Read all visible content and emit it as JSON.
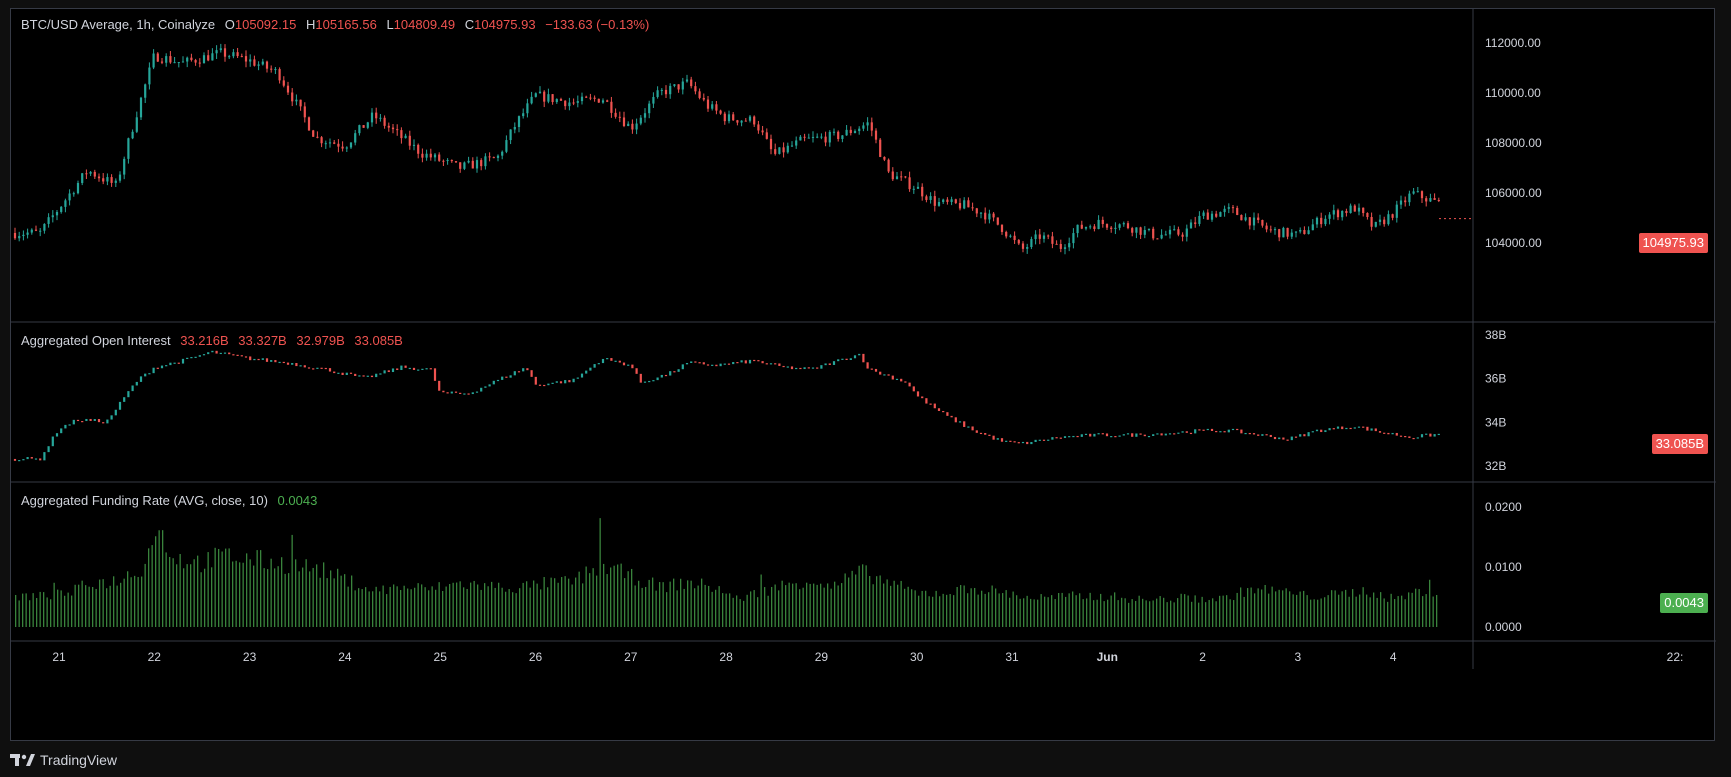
{
  "main_legend": {
    "symbol": "BTC/USD Average, 1h, Coinalyze",
    "o_label": "O",
    "o": "105092.15",
    "h_label": "H",
    "h": "105165.56",
    "l_label": "L",
    "l": "104809.49",
    "c_label": "C",
    "c": "104975.93",
    "change": "−133.63 (−0.13%)"
  },
  "oi_legend": {
    "title": "Aggregated Open Interest",
    "v1": "33.216B",
    "v2": "33.327B",
    "v3": "32.979B",
    "v4": "33.085B"
  },
  "fr_legend": {
    "title": "Aggregated Funding Rate (AVG, close, 10)",
    "value": "0.0043"
  },
  "price_label": "104975.93",
  "oi_label": "33.085B",
  "fr_label": "0.0043",
  "footer": {
    "brand": "TradingView"
  },
  "colors": {
    "up": "#26a69a",
    "down": "#ef5350",
    "funding": "#4caf50",
    "grid": "#363a45",
    "text": "#d1d4dc"
  },
  "chart_data": [
    {
      "type": "candlestick",
      "title": "BTC/USD Average, 1h, Coinalyze",
      "x_ticks": [
        "21",
        "22",
        "23",
        "24",
        "25",
        "26",
        "27",
        "28",
        "29",
        "30",
        "31",
        "Jun",
        "2",
        "3",
        "4",
        "22:"
      ],
      "y_ticks": [
        "104000.00",
        "106000.00",
        "108000.00",
        "110000.00",
        "112000.00"
      ],
      "ylim": [
        102400,
        113400
      ],
      "close_path": [
        [
          20.8,
          104400
        ],
        [
          21.3,
          106900
        ],
        [
          21.6,
          106300
        ],
        [
          21.8,
          109000
        ],
        [
          22.0,
          111500
        ],
        [
          22.3,
          111200
        ],
        [
          22.7,
          111600
        ],
        [
          23.0,
          111300
        ],
        [
          23.3,
          110800
        ],
        [
          23.5,
          109500
        ],
        [
          23.7,
          108200
        ],
        [
          24.0,
          107900
        ],
        [
          24.3,
          109100
        ],
        [
          24.5,
          108500
        ],
        [
          24.8,
          107600
        ],
        [
          25.2,
          107000
        ],
        [
          25.6,
          107400
        ],
        [
          25.8,
          108800
        ],
        [
          26.0,
          109900
        ],
        [
          26.4,
          109600
        ],
        [
          26.7,
          109800
        ],
        [
          27.0,
          108600
        ],
        [
          27.3,
          110000
        ],
        [
          27.6,
          110400
        ],
        [
          27.8,
          109500
        ],
        [
          28.0,
          109000
        ],
        [
          28.3,
          108900
        ],
        [
          28.5,
          107500
        ],
        [
          28.8,
          108100
        ],
        [
          29.2,
          108300
        ],
        [
          29.5,
          108800
        ],
        [
          29.7,
          106800
        ],
        [
          30.0,
          106200
        ],
        [
          30.2,
          105600
        ],
        [
          30.5,
          105500
        ],
        [
          30.7,
          105200
        ],
        [
          30.9,
          104600
        ],
        [
          31.1,
          103700
        ],
        [
          31.3,
          104300
        ],
        [
          31.5,
          103800
        ],
        [
          31.7,
          104600
        ],
        [
          31.9,
          104800
        ],
        [
          32.2,
          104700
        ],
        [
          32.5,
          104300
        ],
        [
          32.8,
          104400
        ],
        [
          33.0,
          105100
        ],
        [
          33.3,
          105300
        ],
        [
          33.5,
          104900
        ],
        [
          33.7,
          104500
        ],
        [
          34.0,
          104300
        ],
        [
          34.3,
          105100
        ],
        [
          34.6,
          105400
        ],
        [
          34.8,
          104600
        ],
        [
          35.0,
          105200
        ],
        [
          35.2,
          106000
        ],
        [
          35.6,
          105400
        ],
        [
          35.8,
          105400
        ],
        [
          36.0,
          105600
        ],
        [
          36.2,
          104970
        ]
      ]
    },
    {
      "type": "line",
      "title": "Aggregated Open Interest",
      "y_ticks": [
        "32B",
        "34B",
        "36B",
        "38B"
      ],
      "ylim": [
        31.7,
        38.5
      ],
      "path": [
        [
          20.8,
          32.3
        ],
        [
          21.0,
          33.7
        ],
        [
          21.2,
          34.1
        ],
        [
          21.5,
          34.0
        ],
        [
          21.8,
          35.8
        ],
        [
          22.0,
          36.5
        ],
        [
          22.3,
          36.8
        ],
        [
          22.6,
          37.2
        ],
        [
          23.0,
          36.9
        ],
        [
          23.4,
          36.7
        ],
        [
          23.8,
          36.4
        ],
        [
          24.2,
          36.0
        ],
        [
          24.6,
          36.5
        ],
        [
          24.9,
          36.4
        ],
        [
          25.0,
          35.3
        ],
        [
          25.3,
          35.3
        ],
        [
          25.6,
          35.9
        ],
        [
          25.9,
          36.5
        ],
        [
          26.0,
          35.7
        ],
        [
          26.4,
          35.9
        ],
        [
          26.7,
          36.9
        ],
        [
          27.0,
          36.6
        ],
        [
          27.1,
          35.8
        ],
        [
          27.4,
          36.2
        ],
        [
          27.6,
          36.7
        ],
        [
          27.9,
          36.6
        ],
        [
          28.3,
          36.8
        ],
        [
          28.6,
          36.5
        ],
        [
          28.9,
          36.4
        ],
        [
          29.1,
          36.7
        ],
        [
          29.4,
          37.1
        ],
        [
          29.5,
          36.4
        ],
        [
          29.9,
          35.8
        ],
        [
          30.0,
          35.2
        ],
        [
          30.3,
          34.3
        ],
        [
          30.6,
          33.6
        ],
        [
          30.9,
          33.1
        ],
        [
          31.1,
          33.0
        ],
        [
          31.5,
          33.3
        ],
        [
          31.9,
          33.4
        ],
        [
          32.3,
          33.4
        ],
        [
          32.7,
          33.5
        ],
        [
          33.0,
          33.6
        ],
        [
          33.3,
          33.6
        ],
        [
          33.6,
          33.4
        ],
        [
          33.9,
          33.2
        ],
        [
          34.2,
          33.6
        ],
        [
          34.6,
          33.8
        ],
        [
          34.9,
          33.5
        ],
        [
          35.2,
          33.3
        ],
        [
          35.6,
          33.5
        ],
        [
          35.9,
          33.4
        ],
        [
          36.2,
          33.085
        ]
      ]
    },
    {
      "type": "bar",
      "title": "Aggregated Funding Rate (AVG, close, 10)",
      "y_ticks": [
        "0.0000",
        "0.0100",
        "0.0200"
      ],
      "ylim": [
        -0.0003,
        0.022
      ],
      "profile": [
        [
          20.8,
          0.0055
        ],
        [
          21.1,
          0.006
        ],
        [
          21.3,
          0.0078
        ],
        [
          21.6,
          0.0083
        ],
        [
          21.9,
          0.011
        ],
        [
          22.0,
          0.0185
        ],
        [
          22.2,
          0.0125
        ],
        [
          22.5,
          0.0115
        ],
        [
          22.7,
          0.0128
        ],
        [
          23.0,
          0.0122
        ],
        [
          23.4,
          0.0112
        ],
        [
          23.7,
          0.0105
        ],
        [
          24.0,
          0.0085
        ],
        [
          24.3,
          0.0065
        ],
        [
          24.6,
          0.0072
        ],
        [
          24.9,
          0.0068
        ],
        [
          25.2,
          0.0078
        ],
        [
          25.5,
          0.0073
        ],
        [
          25.8,
          0.007
        ],
        [
          26.1,
          0.0078
        ],
        [
          26.4,
          0.0082
        ],
        [
          26.7,
          0.0112
        ],
        [
          27.0,
          0.009
        ],
        [
          27.3,
          0.0072
        ],
        [
          27.6,
          0.008
        ],
        [
          27.9,
          0.007
        ],
        [
          28.1,
          0.005
        ],
        [
          28.3,
          0.006
        ],
        [
          28.6,
          0.0075
        ],
        [
          28.9,
          0.0085
        ],
        [
          29.1,
          0.007
        ],
        [
          29.4,
          0.01
        ],
        [
          29.7,
          0.008
        ],
        [
          30.0,
          0.006
        ],
        [
          30.3,
          0.0062
        ],
        [
          30.6,
          0.007
        ],
        [
          30.9,
          0.0062
        ],
        [
          31.2,
          0.0052
        ],
        [
          31.6,
          0.0055
        ],
        [
          32.0,
          0.0055
        ],
        [
          32.4,
          0.0048
        ],
        [
          32.8,
          0.0052
        ],
        [
          33.2,
          0.005
        ],
        [
          33.5,
          0.0068
        ],
        [
          33.8,
          0.0065
        ],
        [
          34.1,
          0.0055
        ],
        [
          34.4,
          0.0058
        ],
        [
          34.7,
          0.0065
        ],
        [
          35.0,
          0.005
        ],
        [
          35.3,
          0.0065
        ],
        [
          35.7,
          0.0043
        ],
        [
          36.0,
          0.004
        ],
        [
          36.2,
          0.0043
        ]
      ]
    }
  ]
}
